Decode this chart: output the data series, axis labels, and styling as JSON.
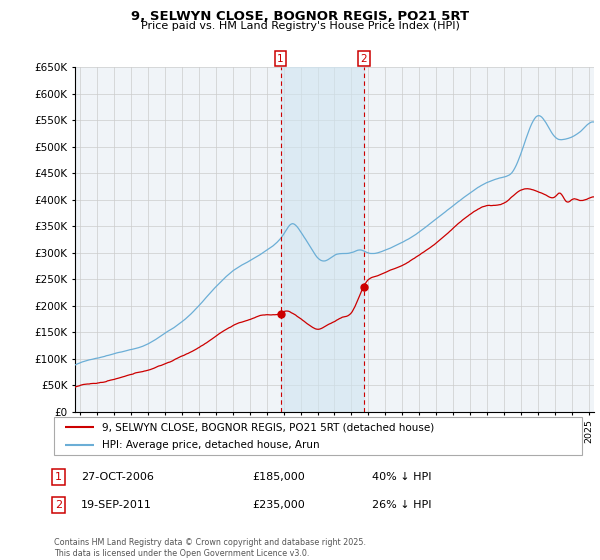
{
  "title": "9, SELWYN CLOSE, BOGNOR REGIS, PO21 5RT",
  "subtitle": "Price paid vs. HM Land Registry's House Price Index (HPI)",
  "hpi_color": "#6baed6",
  "price_color": "#cc0000",
  "background_color": "#ffffff",
  "grid_color": "#cccccc",
  "plot_bg_color": "#f0f4f8",
  "shade_color": "#d0e4f0",
  "ylim": [
    0,
    650000
  ],
  "yticks": [
    0,
    50000,
    100000,
    150000,
    200000,
    250000,
    300000,
    350000,
    400000,
    450000,
    500000,
    550000,
    600000,
    650000
  ],
  "xlim_start": 1994.7,
  "xlim_end": 2025.3,
  "xticks": [
    1995,
    1996,
    1997,
    1998,
    1999,
    2000,
    2001,
    2002,
    2003,
    2004,
    2005,
    2006,
    2007,
    2008,
    2009,
    2010,
    2011,
    2012,
    2013,
    2014,
    2015,
    2016,
    2017,
    2018,
    2019,
    2020,
    2021,
    2022,
    2023,
    2024,
    2025
  ],
  "legend_label_hpi": "HPI: Average price, detached house, Arun",
  "legend_label_price": "9, SELWYN CLOSE, BOGNOR REGIS, PO21 5RT (detached house)",
  "transaction1_date": 2006.82,
  "transaction1_price": 185000,
  "transaction1_text": "27-OCT-2006",
  "transaction1_hpi_text": "40% ↓ HPI",
  "transaction2_date": 2011.72,
  "transaction2_price": 235000,
  "transaction2_text": "19-SEP-2011",
  "transaction2_hpi_text": "26% ↓ HPI",
  "footer": "Contains HM Land Registry data © Crown copyright and database right 2025.\nThis data is licensed under the Open Government Licence v3.0."
}
